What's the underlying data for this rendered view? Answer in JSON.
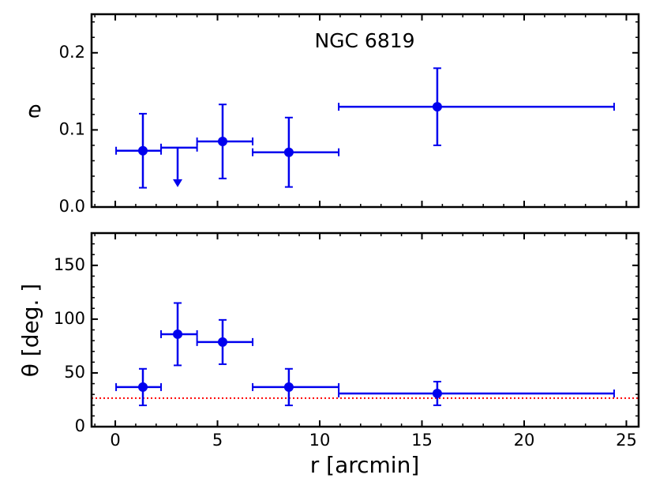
{
  "chart_data": [
    {
      "type": "errorbar",
      "annotation": "NGC 6819",
      "ylabel": "e",
      "x": [
        1.35,
        3.05,
        5.25,
        8.49,
        15.75
      ],
      "xerr_minus": [
        1.31,
        0.81,
        1.25,
        1.77,
        4.82
      ],
      "xerr_plus": [
        0.89,
        0.95,
        1.47,
        2.44,
        8.65
      ],
      "values": [
        0.073,
        0.077,
        0.085,
        0.071,
        0.13
      ],
      "yerr": [
        0.048,
        null,
        0.048,
        0.045,
        0.05
      ],
      "upper_limits": [
        false,
        true,
        false,
        false,
        false
      ],
      "color": "#0000ee",
      "xlim": [
        -1.16,
        25.6
      ],
      "xticks": [
        0,
        5,
        10,
        15,
        20,
        25
      ],
      "ylim": [
        0,
        0.25
      ],
      "yticks": [
        {
          "value": 0,
          "label": "0.0"
        },
        0.1,
        0.2
      ]
    },
    {
      "type": "errorbar",
      "ylabel": "θ [deg. ]",
      "xlabel": "r [arcmin]",
      "x": [
        1.35,
        3.05,
        5.25,
        8.49,
        15.75
      ],
      "xerr_minus": [
        1.31,
        0.81,
        1.25,
        1.77,
        4.82
      ],
      "xerr_plus": [
        0.89,
        0.95,
        1.47,
        2.44,
        8.65
      ],
      "values": [
        36.8,
        86,
        78.7,
        36.8,
        30.9
      ],
      "yerr": [
        17,
        29,
        20.6,
        17,
        11
      ],
      "upper_limits": [
        false,
        false,
        false,
        false,
        false
      ],
      "color": "#0000ee",
      "hline": {
        "value": 26.5,
        "color": "#ff0000",
        "style": "dotted"
      },
      "xlim": [
        -1.16,
        25.6
      ],
      "xticks": [
        0,
        5,
        10,
        15,
        20,
        25
      ],
      "ylim": [
        0,
        180
      ],
      "yticks": [
        0,
        50,
        100,
        150
      ]
    }
  ]
}
